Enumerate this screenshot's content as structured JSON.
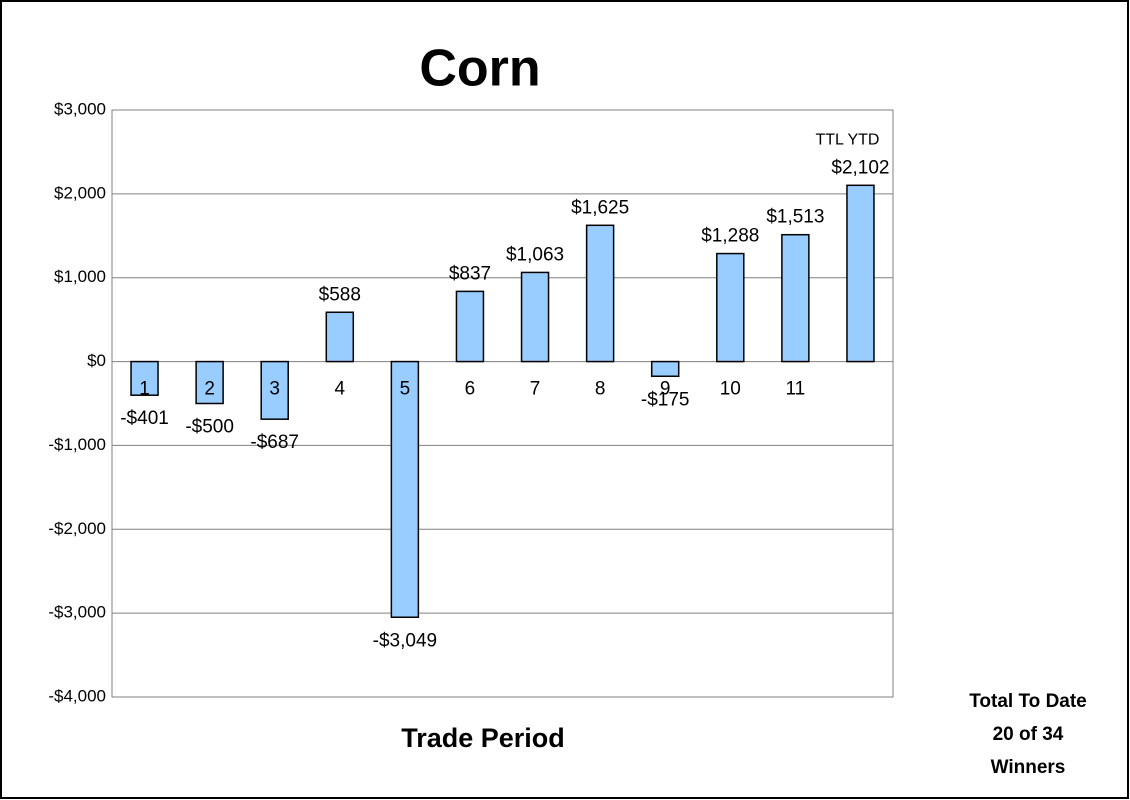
{
  "chart_data": {
    "type": "bar",
    "title": "Corn",
    "x_label": "Trade Period",
    "categories": [
      "1",
      "2",
      "3",
      "4",
      "5",
      "6",
      "7",
      "8",
      "9",
      "10",
      "11",
      null
    ],
    "values": [
      -401,
      -500,
      -687,
      588,
      -3049,
      837,
      1063,
      1625,
      -175,
      1288,
      1513,
      2102
    ],
    "value_labels": [
      "-$401",
      "-$500",
      "-$687",
      "$588",
      "-$3,049",
      "$837",
      "$1,063",
      "$1,625",
      "-$175",
      "$1,288",
      "$1,513",
      "$2,102"
    ],
    "color": "#99ccff",
    "ylim": [
      -4000,
      3000
    ],
    "yticks": [
      {
        "value": -4000,
        "label": "-$4,000"
      },
      {
        "value": -3000,
        "label": "-$3,000"
      },
      {
        "value": -2000,
        "label": "-$2,000"
      },
      {
        "value": -1000,
        "label": "-$1,000"
      },
      {
        "value": 0,
        "label": "$0"
      },
      {
        "value": 1000,
        "label": "$1,000"
      },
      {
        "value": 2000,
        "label": "$2,000"
      },
      {
        "value": 3000,
        "label": "$3,000"
      }
    ],
    "grid": true,
    "annotations": [
      "TTL YTD",
      "Total To Date",
      "20 of 34",
      "Winners"
    ]
  }
}
